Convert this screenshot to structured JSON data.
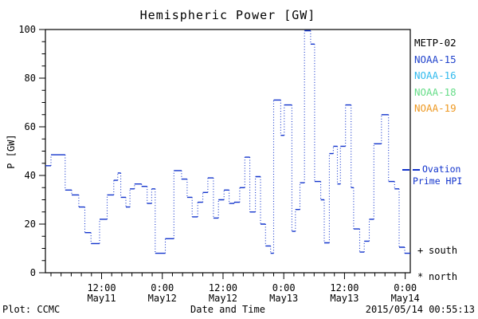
{
  "title": "Hemispheric Power [GW]",
  "axes": {
    "ylabel": "P [GW]",
    "xlabel": "Date and Time",
    "ylim": [
      0,
      100
    ],
    "ytick_major": [
      0,
      20,
      40,
      60,
      80,
      100
    ],
    "ytick_minor_step": 5,
    "xticks": [
      {
        "h": 11.1,
        "time": "12:00",
        "date": "May11"
      },
      {
        "h": 23.1,
        "time": "0:00",
        "date": "May12"
      },
      {
        "h": 35.1,
        "time": "12:00",
        "date": "May12"
      },
      {
        "h": 47.1,
        "time": "0:00",
        "date": "May13"
      },
      {
        "h": 59.1,
        "time": "12:00",
        "date": "May13"
      },
      {
        "h": 71.1,
        "time": "0:00",
        "date": "May14"
      }
    ],
    "xminor_step_hours": 2,
    "span_hours": 72.1,
    "grid": false
  },
  "footer": {
    "left": "Plot: CCMC",
    "right": "2015/05/14 00:55:13"
  },
  "legend": {
    "satellites": [
      {
        "label": "METP-02",
        "color": "#000000"
      },
      {
        "label": "NOAA-15",
        "color": "#2244cc"
      },
      {
        "label": "NOAA-16",
        "color": "#33bbee"
      },
      {
        "label": "NOAA-18",
        "color": "#66dd88"
      },
      {
        "label": "NOAA-19",
        "color": "#ee9922"
      }
    ],
    "line_label": "Ovation Prime HPI",
    "line_color": "#1133cc",
    "markers": [
      {
        "symbol": "+",
        "label": "south"
      },
      {
        "symbol": "*",
        "label": "north"
      }
    ]
  },
  "chart_data": {
    "type": "line",
    "style": "step-dotted-verticals",
    "title": "Hemispheric Power [GW]",
    "xlabel": "Date and Time",
    "ylabel": "P [GW]",
    "ylim": [
      0,
      100
    ],
    "x_unit": "hours from left edge (axis spans May 11 to 0:00 May 14, 2015)",
    "legend_position": "right",
    "series": [
      {
        "name": "Ovation Prime HPI",
        "color": "#1133cc",
        "end_hour": 72.1,
        "points": [
          [
            0.0,
            44
          ],
          [
            1.1,
            48.5
          ],
          [
            3.9,
            34
          ],
          [
            5.2,
            32
          ],
          [
            6.6,
            27
          ],
          [
            7.8,
            16.5
          ],
          [
            9.0,
            12
          ],
          [
            10.7,
            22
          ],
          [
            12.2,
            32
          ],
          [
            13.5,
            38
          ],
          [
            14.3,
            41
          ],
          [
            14.9,
            31
          ],
          [
            15.9,
            27
          ],
          [
            16.7,
            34.5
          ],
          [
            17.6,
            36.5
          ],
          [
            19.0,
            35.5
          ],
          [
            20.1,
            28.5
          ],
          [
            21.0,
            34.5
          ],
          [
            21.7,
            8
          ],
          [
            23.7,
            14
          ],
          [
            25.4,
            42
          ],
          [
            26.9,
            38.5
          ],
          [
            28.0,
            31
          ],
          [
            29.0,
            23
          ],
          [
            30.1,
            29
          ],
          [
            31.1,
            33
          ],
          [
            32.1,
            39
          ],
          [
            33.2,
            22.5
          ],
          [
            34.2,
            30
          ],
          [
            35.3,
            34
          ],
          [
            36.3,
            28.5
          ],
          [
            37.3,
            29
          ],
          [
            38.4,
            35
          ],
          [
            39.4,
            47.5
          ],
          [
            40.4,
            25
          ],
          [
            41.5,
            39.5
          ],
          [
            42.5,
            20
          ],
          [
            43.5,
            11
          ],
          [
            44.5,
            8
          ],
          [
            45.1,
            71
          ],
          [
            46.5,
            56.5
          ],
          [
            47.2,
            69
          ],
          [
            48.7,
            17
          ],
          [
            49.4,
            26
          ],
          [
            50.3,
            37
          ],
          [
            51.2,
            99.5
          ],
          [
            52.4,
            94
          ],
          [
            53.2,
            37.5
          ],
          [
            54.4,
            30
          ],
          [
            55.1,
            12.3
          ],
          [
            56.1,
            49
          ],
          [
            56.9,
            52
          ],
          [
            57.7,
            36.5
          ],
          [
            58.3,
            52
          ],
          [
            59.3,
            69
          ],
          [
            60.4,
            35
          ],
          [
            60.9,
            18
          ],
          [
            62.1,
            8.5
          ],
          [
            63.0,
            13
          ],
          [
            64.0,
            22
          ],
          [
            64.9,
            53
          ],
          [
            66.4,
            65
          ],
          [
            67.8,
            37.5
          ],
          [
            69.0,
            34.5
          ],
          [
            69.9,
            10.5
          ],
          [
            71.0,
            8
          ]
        ]
      }
    ]
  }
}
